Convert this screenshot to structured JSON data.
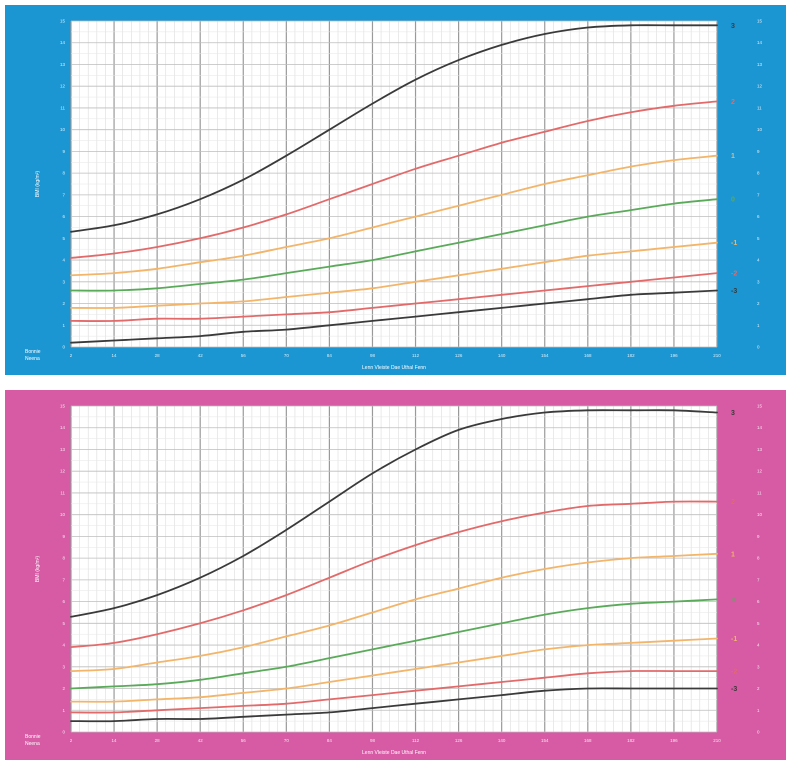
{
  "charts": [
    {
      "name": "boys-bmi-chart",
      "bg_color": "#1c96d2",
      "chart_data": {
        "type": "line",
        "title": "",
        "xlabel": "Lenn Vleiste Dae Uthal Fenn",
        "ylabel": "BMI (kg/m²)",
        "corner_label": "Bonnie",
        "corner_label2": "Neena",
        "x_ticks": [
          "2",
          "14",
          "28",
          "42",
          "56",
          "70",
          "84",
          "98",
          "112",
          "126",
          "140",
          "154",
          "168",
          "182",
          "196",
          "210"
        ],
        "y_ticks": [
          "15",
          "14",
          "13",
          "12",
          "11",
          "10",
          "9",
          "8",
          "7",
          "6",
          "5",
          "4",
          "3",
          "2",
          "1",
          "0"
        ],
        "xlim": [
          0,
          15
        ],
        "ylim": [
          0,
          15
        ],
        "series": [
          {
            "name": "3",
            "color": "#3a3a3a",
            "x": [
              0,
              1,
              2,
              3,
              4,
              5,
              6,
              7,
              8,
              9,
              10,
              11,
              12,
              13,
              14,
              15
            ],
            "values": [
              5.3,
              5.6,
              6.1,
              6.8,
              7.7,
              8.8,
              10.0,
              11.2,
              12.3,
              13.2,
              13.9,
              14.4,
              14.7,
              14.8,
              14.8,
              14.8
            ]
          },
          {
            "name": "2",
            "color": "#e26a6a",
            "x": [
              0,
              1,
              2,
              3,
              4,
              5,
              6,
              7,
              8,
              9,
              10,
              11,
              12,
              13,
              14,
              15
            ],
            "values": [
              4.1,
              4.3,
              4.6,
              5.0,
              5.5,
              6.1,
              6.8,
              7.5,
              8.2,
              8.8,
              9.4,
              9.9,
              10.4,
              10.8,
              11.1,
              11.3
            ]
          },
          {
            "name": "1",
            "color": "#f2b56a",
            "x": [
              0,
              1,
              2,
              3,
              4,
              5,
              6,
              7,
              8,
              9,
              10,
              11,
              12,
              13,
              14,
              15
            ],
            "values": [
              3.3,
              3.4,
              3.6,
              3.9,
              4.2,
              4.6,
              5.0,
              5.5,
              6.0,
              6.5,
              7.0,
              7.5,
              7.9,
              8.3,
              8.6,
              8.8
            ]
          },
          {
            "name": "0",
            "color": "#5aaa5a",
            "x": [
              0,
              1,
              2,
              3,
              4,
              5,
              6,
              7,
              8,
              9,
              10,
              11,
              12,
              13,
              14,
              15
            ],
            "values": [
              2.6,
              2.6,
              2.7,
              2.9,
              3.1,
              3.4,
              3.7,
              4.0,
              4.4,
              4.8,
              5.2,
              5.6,
              6.0,
              6.3,
              6.6,
              6.8
            ]
          },
          {
            "name": "-1",
            "color": "#f2b56a",
            "x": [
              0,
              1,
              2,
              3,
              4,
              5,
              6,
              7,
              8,
              9,
              10,
              11,
              12,
              13,
              14,
              15
            ],
            "values": [
              1.8,
              1.8,
              1.9,
              2.0,
              2.1,
              2.3,
              2.5,
              2.7,
              3.0,
              3.3,
              3.6,
              3.9,
              4.2,
              4.4,
              4.6,
              4.8
            ]
          },
          {
            "name": "-2",
            "color": "#e26a6a",
            "x": [
              0,
              1,
              2,
              3,
              4,
              5,
              6,
              7,
              8,
              9,
              10,
              11,
              12,
              13,
              14,
              15
            ],
            "values": [
              1.2,
              1.2,
              1.3,
              1.3,
              1.4,
              1.5,
              1.6,
              1.8,
              2.0,
              2.2,
              2.4,
              2.6,
              2.8,
              3.0,
              3.2,
              3.4
            ]
          },
          {
            "name": "-3",
            "color": "#3a3a3a",
            "x": [
              0,
              1,
              2,
              3,
              4,
              5,
              6,
              7,
              8,
              9,
              10,
              11,
              12,
              13,
              14,
              15
            ],
            "values": [
              0.2,
              0.3,
              0.4,
              0.5,
              0.7,
              0.8,
              1.0,
              1.2,
              1.4,
              1.6,
              1.8,
              2.0,
              2.2,
              2.4,
              2.5,
              2.6
            ]
          }
        ]
      }
    },
    {
      "name": "girls-bmi-chart",
      "bg_color": "#d65aa4",
      "chart_data": {
        "type": "line",
        "title": "",
        "xlabel": "Lenn Vleiste Dae Uthal Fenn",
        "ylabel": "BMI (kg/m²)",
        "corner_label": "Bonnie",
        "corner_label2": "Neena",
        "x_ticks": [
          "2",
          "14",
          "28",
          "42",
          "56",
          "70",
          "84",
          "98",
          "112",
          "126",
          "140",
          "154",
          "168",
          "182",
          "196",
          "210"
        ],
        "y_ticks": [
          "15",
          "14",
          "13",
          "12",
          "11",
          "10",
          "9",
          "8",
          "7",
          "6",
          "5",
          "4",
          "3",
          "2",
          "1",
          "0"
        ],
        "xlim": [
          0,
          15
        ],
        "ylim": [
          0,
          15
        ],
        "series": [
          {
            "name": "3",
            "color": "#3a3a3a",
            "x": [
              0,
              1,
              2,
              3,
              4,
              5,
              6,
              7,
              8,
              9,
              10,
              11,
              12,
              13,
              14,
              15
            ],
            "values": [
              5.3,
              5.7,
              6.3,
              7.1,
              8.1,
              9.3,
              10.6,
              11.9,
              13.0,
              13.9,
              14.4,
              14.7,
              14.8,
              14.8,
              14.8,
              14.7
            ]
          },
          {
            "name": "2",
            "color": "#e26a6a",
            "x": [
              0,
              1,
              2,
              3,
              4,
              5,
              6,
              7,
              8,
              9,
              10,
              11,
              12,
              13,
              14,
              15
            ],
            "values": [
              3.9,
              4.1,
              4.5,
              5.0,
              5.6,
              6.3,
              7.1,
              7.9,
              8.6,
              9.2,
              9.7,
              10.1,
              10.4,
              10.5,
              10.6,
              10.6
            ]
          },
          {
            "name": "1",
            "color": "#f2b56a",
            "x": [
              0,
              1,
              2,
              3,
              4,
              5,
              6,
              7,
              8,
              9,
              10,
              11,
              12,
              13,
              14,
              15
            ],
            "values": [
              2.8,
              2.9,
              3.2,
              3.5,
              3.9,
              4.4,
              4.9,
              5.5,
              6.1,
              6.6,
              7.1,
              7.5,
              7.8,
              8.0,
              8.1,
              8.2
            ]
          },
          {
            "name": "0",
            "color": "#5aaa5a",
            "x": [
              0,
              1,
              2,
              3,
              4,
              5,
              6,
              7,
              8,
              9,
              10,
              11,
              12,
              13,
              14,
              15
            ],
            "values": [
              2.0,
              2.1,
              2.2,
              2.4,
              2.7,
              3.0,
              3.4,
              3.8,
              4.2,
              4.6,
              5.0,
              5.4,
              5.7,
              5.9,
              6.0,
              6.1
            ]
          },
          {
            "name": "-1",
            "color": "#f2b56a",
            "x": [
              0,
              1,
              2,
              3,
              4,
              5,
              6,
              7,
              8,
              9,
              10,
              11,
              12,
              13,
              14,
              15
            ],
            "values": [
              1.4,
              1.4,
              1.5,
              1.6,
              1.8,
              2.0,
              2.3,
              2.6,
              2.9,
              3.2,
              3.5,
              3.8,
              4.0,
              4.1,
              4.2,
              4.3
            ]
          },
          {
            "name": "-2",
            "color": "#e26a6a",
            "x": [
              0,
              1,
              2,
              3,
              4,
              5,
              6,
              7,
              8,
              9,
              10,
              11,
              12,
              13,
              14,
              15
            ],
            "values": [
              0.9,
              0.9,
              1.0,
              1.1,
              1.2,
              1.3,
              1.5,
              1.7,
              1.9,
              2.1,
              2.3,
              2.5,
              2.7,
              2.8,
              2.8,
              2.8
            ]
          },
          {
            "name": "-3",
            "color": "#3a3a3a",
            "x": [
              0,
              1,
              2,
              3,
              4,
              5,
              6,
              7,
              8,
              9,
              10,
              11,
              12,
              13,
              14,
              15
            ],
            "values": [
              0.5,
              0.5,
              0.6,
              0.6,
              0.7,
              0.8,
              0.9,
              1.1,
              1.3,
              1.5,
              1.7,
              1.9,
              2.0,
              2.0,
              2.0,
              2.0
            ]
          }
        ]
      }
    }
  ]
}
